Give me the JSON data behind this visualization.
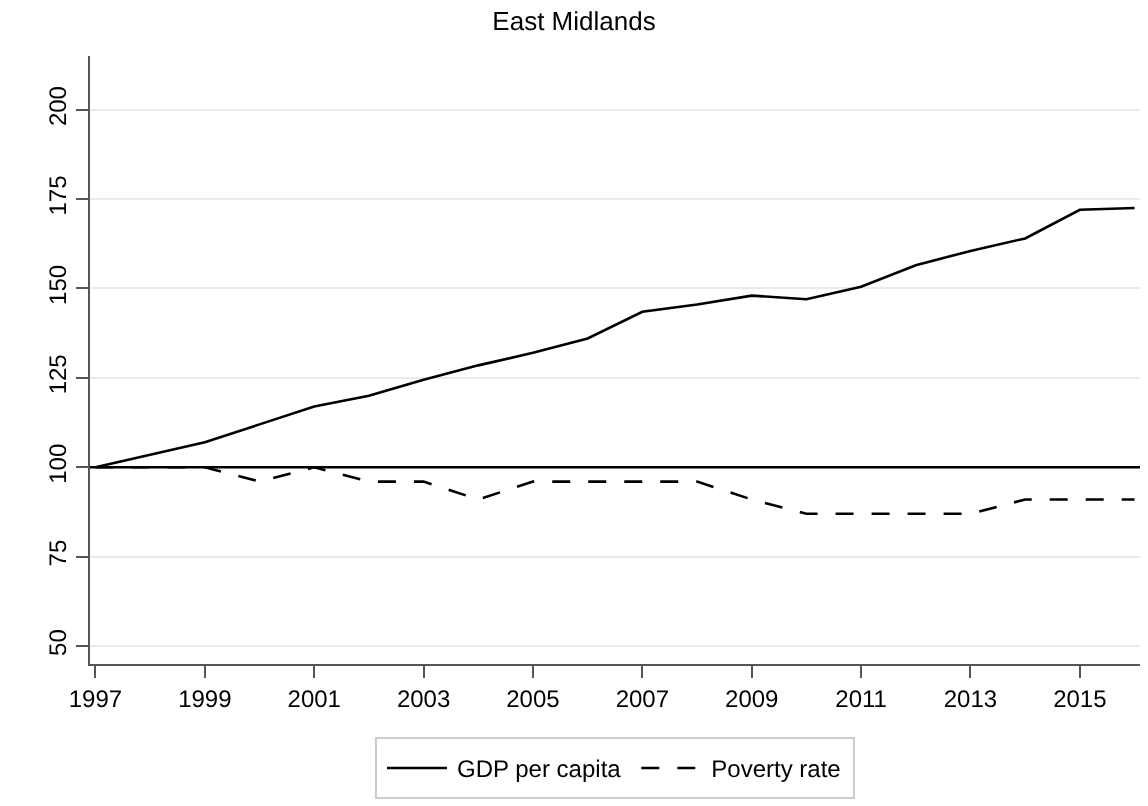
{
  "chart_data": {
    "type": "line",
    "title": "East Midlands",
    "x": [
      1997,
      1998,
      1999,
      2000,
      2001,
      2002,
      2003,
      2004,
      2005,
      2006,
      2007,
      2008,
      2009,
      2010,
      2011,
      2012,
      2013,
      2014,
      2015,
      2016
    ],
    "series": [
      {
        "name": "GDP per capita",
        "color": "#000000",
        "line_style": "solid",
        "values": [
          100,
          103.5,
          107,
          112,
          117,
          120,
          124.5,
          128.5,
          132,
          136,
          143.5,
          145.5,
          148,
          147,
          150.5,
          156.5,
          160.5,
          164,
          172,
          172.5
        ]
      },
      {
        "name": "Poverty rate",
        "color": "#000000",
        "line_style": "dashed",
        "values": [
          100,
          100,
          100,
          96,
          100,
          96,
          96,
          91,
          96,
          96,
          96,
          96,
          91,
          87,
          87,
          87,
          87,
          91,
          91,
          91
        ]
      }
    ],
    "xlim": [
      1996.9,
      2016.1
    ],
    "xticks": [
      1997,
      1999,
      2001,
      2003,
      2005,
      2007,
      2009,
      2011,
      2013,
      2015
    ],
    "ylim": [
      45,
      215
    ],
    "yticks": [
      50,
      75,
      100,
      125,
      150,
      175,
      200
    ],
    "ref_lines": [
      {
        "axis": "y",
        "value": 100,
        "color": "#000000"
      }
    ],
    "grid": "y",
    "legend": "bottom",
    "marker": "none"
  }
}
